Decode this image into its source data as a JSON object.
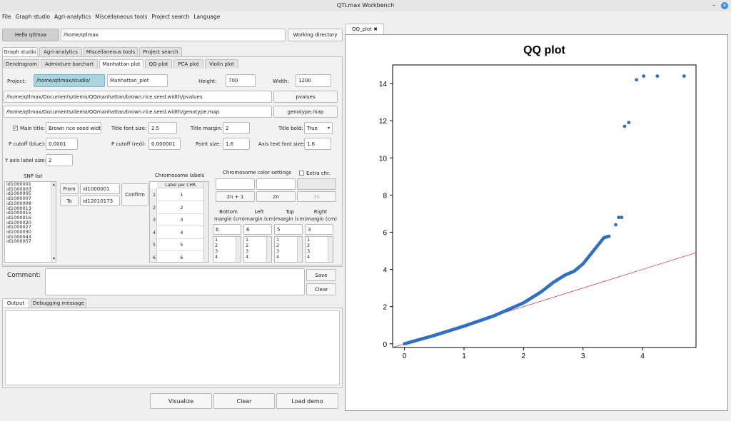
{
  "window": {
    "title": "QTLmax Workbench",
    "minimize": "–"
  },
  "menu": [
    "File",
    "Graph studio",
    "Agri-analytics",
    "Miscellaneous tools",
    "Project search",
    "Language"
  ],
  "top": {
    "hello": "Hello qtlmax",
    "path": "/home/qtlmax",
    "workdir": "Working directory"
  },
  "maintabs": [
    "Graph studio",
    "Agri-analytics",
    "Miscellaneous tools",
    "Project search"
  ],
  "subtabs": [
    "Dendrogram",
    "Admixture barchart",
    "Manhattan plot",
    "QQ plot",
    "PCA plot",
    "Violin plot"
  ],
  "form": {
    "project_label": "Project:",
    "project_dir": "/home/qtlmax/studio/",
    "project_name": "Manhattan_plot",
    "height_label": "Height:",
    "height": "700",
    "width_label": "Width:",
    "width": "1200",
    "pvalues_path": "/home/qtlmax/Documents/demo/QQmanhattan/brown.rice.seed.width/pvalues",
    "pvalues_btn": "pvalues",
    "geno_path": "/home/qtlmax/Documents/demo/QQmanhattan/brown.rice.seed.width/genotype.map",
    "geno_btn": "genotype.map",
    "main_title_label": "Main title:",
    "main_title": "Brown rice seed width",
    "title_font_label": "Title font size:",
    "title_font": "2.5",
    "title_margin_label": "Title margin:",
    "title_margin": "2",
    "title_bold_label": "Title bold:",
    "title_bold": "True",
    "pcut_blue_label": "P cutoff (blue):",
    "pcut_blue": "0.0001",
    "pcut_red_label": "P cutoff (red):",
    "pcut_red": "0.000001",
    "point_size_label": "Point size:",
    "point_size": "1.6",
    "axis_font_label": "Axis text font size:",
    "axis_font": "1.6",
    "yaxis_label": "Y axis label size:",
    "yaxis": "2"
  },
  "snp": {
    "title": "SNP list",
    "items": [
      "id1000001",
      "id1000003",
      "id1000005",
      "id1000007",
      "id1000008",
      "id1000013",
      "id1000015",
      "id1000016",
      "id1000020",
      "id1000027",
      "id1000030",
      "id1000043",
      "id1000057"
    ],
    "from_btn": "From",
    "from_val": "id1000001",
    "to_btn": "To",
    "to_val": "id12010173",
    "confirm": "Confirm"
  },
  "chrom": {
    "title": "Chromosome labels",
    "header": "Label per CHR.",
    "rows": [
      "1",
      "2",
      "3",
      "4",
      "5",
      "6"
    ]
  },
  "color": {
    "title": "Chromosome color settings",
    "extra": "Extra chr.",
    "btn1": "2n + 1",
    "btn2": "2n",
    "btn3": "3n"
  },
  "margins": {
    "labels": [
      [
        "Bottom",
        "margin (cm)"
      ],
      [
        "Left",
        "margin (cm)"
      ],
      [
        "Top",
        "margin (cm)"
      ],
      [
        "Right",
        "margin (cm)"
      ]
    ],
    "values": [
      "6",
      "6",
      "5",
      "3"
    ],
    "opts": [
      "1",
      "2",
      "3",
      "4"
    ]
  },
  "comment": {
    "label": "Comment:",
    "save": "Save",
    "clear": "Clear"
  },
  "outtabs": [
    "Output",
    "Debugging message"
  ],
  "bottom": {
    "visualize": "Visualize",
    "clear": "Clear",
    "load": "Load demo"
  },
  "plot_tab": "QQ_plot",
  "chart_data": {
    "type": "scatter",
    "title": "QQ plot",
    "xlim": [
      -0.2,
      4.9
    ],
    "ylim": [
      -0.2,
      15
    ],
    "xticks": [
      0,
      1,
      2,
      3,
      4
    ],
    "yticks": [
      0,
      2,
      4,
      6,
      8,
      10,
      12,
      14
    ],
    "outliers": [
      [
        3.55,
        6.4
      ],
      [
        3.6,
        6.8
      ],
      [
        3.65,
        6.8
      ],
      [
        3.7,
        11.7
      ],
      [
        3.77,
        11.9
      ],
      [
        3.9,
        14.2
      ],
      [
        4.02,
        14.4
      ],
      [
        4.25,
        14.4
      ],
      [
        4.7,
        14.4
      ]
    ],
    "curve_pts": [
      [
        0,
        0
      ],
      [
        0.5,
        0.45
      ],
      [
        1,
        0.95
      ],
      [
        1.5,
        1.5
      ],
      [
        2,
        2.2
      ],
      [
        2.3,
        2.8
      ],
      [
        2.5,
        3.3
      ],
      [
        2.7,
        3.7
      ],
      [
        2.85,
        3.9
      ],
      [
        3.0,
        4.3
      ],
      [
        3.15,
        4.9
      ],
      [
        3.25,
        5.3
      ],
      [
        3.35,
        5.7
      ],
      [
        3.45,
        5.8
      ]
    ],
    "line": {
      "slope": 1,
      "color": "#e0404a"
    },
    "point_color": "#2f6fc4"
  }
}
